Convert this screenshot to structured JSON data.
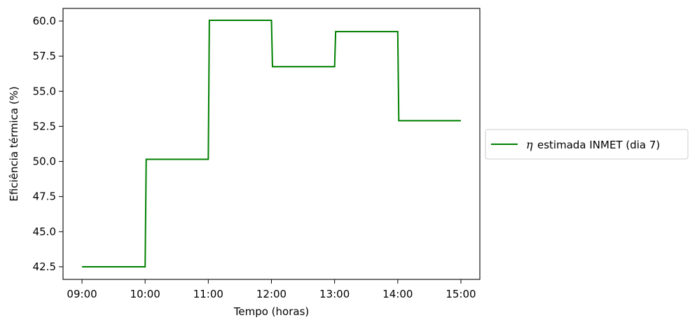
{
  "chart_data": {
    "type": "line",
    "title": "",
    "xlabel": "Tempo (horas)",
    "ylabel": "Eficiência térmica (%)",
    "x_tick_labels": [
      "09:00",
      "10:00",
      "11:00",
      "12:00",
      "13:00",
      "14:00",
      "15:00"
    ],
    "y_tick_labels": [
      "42.5",
      "45.0",
      "47.5",
      "50.0",
      "52.5",
      "55.0",
      "57.5",
      "60.0"
    ],
    "xlim_hours": [
      8.7,
      15.3
    ],
    "ylim": [
      41.6,
      60.9
    ],
    "grid": false,
    "legend_location": "center left, outside right",
    "series": [
      {
        "name": "estimada INMET (dia 7)",
        "name_symbol": "η",
        "color": "#008000",
        "points": [
          [
            "09:00",
            42.5
          ],
          [
            "10:00",
            42.5
          ],
          [
            "10:01",
            50.15
          ],
          [
            "11:00",
            50.15
          ],
          [
            "11:01",
            60.05
          ],
          [
            "12:00",
            60.05
          ],
          [
            "12:01",
            56.75
          ],
          [
            "13:00",
            56.75
          ],
          [
            "13:01",
            59.25
          ],
          [
            "14:00",
            59.25
          ],
          [
            "14:01",
            52.9
          ],
          [
            "15:00",
            52.9
          ]
        ]
      }
    ]
  }
}
